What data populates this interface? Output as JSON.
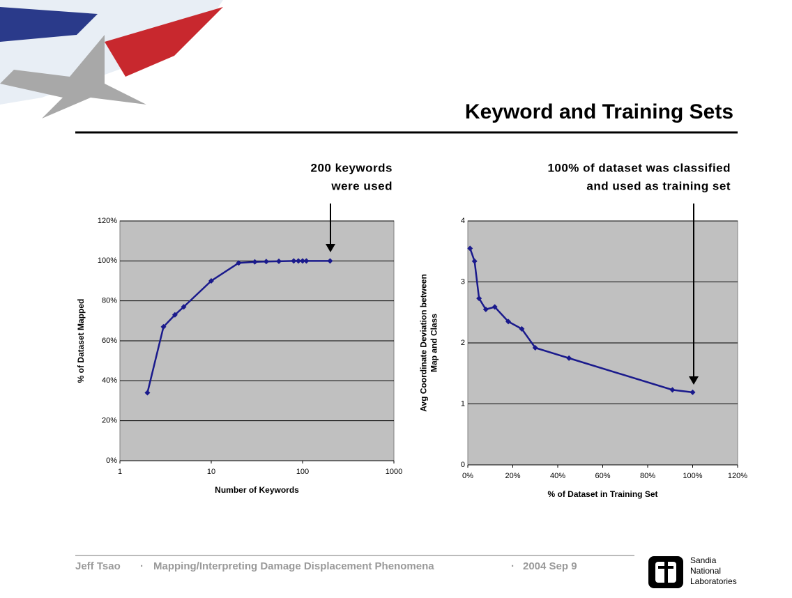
{
  "slide": {
    "title": "Keyword and Training Sets",
    "footer": {
      "author": "Jeff Tsao",
      "topic": "Mapping/Interpreting Damage Displacement Phenomena",
      "date": "2004 Sep 9"
    },
    "logo": [
      "Sandia",
      "National",
      "Laboratories"
    ]
  },
  "chart_data": [
    {
      "type": "line",
      "xscale": "log",
      "annotation": [
        "200 keywords",
        "were used"
      ],
      "xlabel": "Number of Keywords",
      "ylabel": [
        "% of Dataset Mapped"
      ],
      "x": [
        2,
        3,
        4,
        5,
        10,
        20,
        30,
        40,
        55,
        80,
        90,
        100,
        110,
        200
      ],
      "values": [
        34,
        67,
        73,
        77,
        90,
        99,
        99.5,
        99.7,
        99.8,
        100,
        100,
        100,
        100,
        100
      ],
      "color": "#1a1a8c",
      "xlim": [
        1,
        1000
      ],
      "xticks": [
        1,
        10,
        100,
        1000
      ],
      "ylim": [
        0,
        120
      ],
      "yticks": [
        {
          "value": 0,
          "label": "0%"
        },
        {
          "value": 20,
          "label": "20%"
        },
        {
          "value": 40,
          "label": "40%"
        },
        {
          "value": 60,
          "label": "60%"
        },
        {
          "value": 80,
          "label": "80%"
        },
        {
          "value": 100,
          "label": "100%"
        },
        {
          "value": 120,
          "label": "120%"
        }
      ],
      "grid": true
    },
    {
      "type": "line",
      "xscale": "linear",
      "annotation": [
        "100% of dataset was classified",
        "and used as training set"
      ],
      "xlabel": "% of Dataset in Training Set",
      "ylabel": [
        "Avg Coordinate Deviation between",
        "Map and Class"
      ],
      "x": [
        1,
        3,
        5,
        8,
        12,
        18,
        24,
        30,
        45,
        91,
        100
      ],
      "values": [
        3.55,
        3.34,
        2.73,
        2.55,
        2.59,
        2.35,
        2.23,
        1.92,
        1.75,
        1.23,
        1.19
      ],
      "color": "#1a1a8c",
      "xlim": [
        0,
        120
      ],
      "xticks": [
        {
          "value": 0,
          "label": "0%"
        },
        {
          "value": 20,
          "label": "20%"
        },
        {
          "value": 40,
          "label": "40%"
        },
        {
          "value": 60,
          "label": "60%"
        },
        {
          "value": 80,
          "label": "80%"
        },
        {
          "value": 100,
          "label": "100%"
        },
        {
          "value": 120,
          "label": "120%"
        }
      ],
      "ylim": [
        0,
        4
      ],
      "yticks": [
        0,
        1,
        2,
        3,
        4
      ],
      "grid": true
    }
  ]
}
